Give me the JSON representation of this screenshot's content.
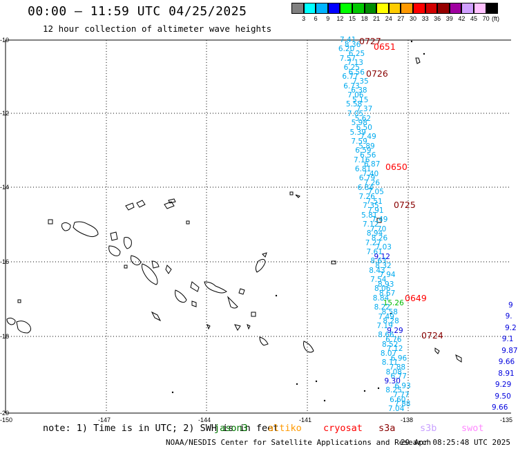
{
  "header": {
    "title": "00:00 — 11:59 UTC 04/25/2025",
    "subtitle": "12 hour collection of altimeter wave heights"
  },
  "legend": {
    "unit": "(ft)",
    "ticks": [
      "3",
      "6",
      "9",
      "12",
      "15",
      "18",
      "21",
      "24",
      "27",
      "30",
      "33",
      "36",
      "39",
      "42",
      "45",
      "70"
    ],
    "colors": [
      "#808080",
      "#00ffff",
      "#00b4ff",
      "#0000ff",
      "#00ff00",
      "#00c800",
      "#008c00",
      "#ffff00",
      "#ffcc00",
      "#ff9900",
      "#ff0000",
      "#d20000",
      "#960000",
      "#a000a0",
      "#d0a0ff",
      "#ffc0ff",
      "#000000"
    ]
  },
  "axes": {
    "lat_labels": [
      "-10",
      "-12",
      "-14",
      "-16",
      "-18",
      "-20"
    ],
    "lon_labels": [
      "-150",
      "-147",
      "-144",
      "-141",
      "-138",
      "-135"
    ]
  },
  "tracks": {
    "main_values": [
      "7.41",
      "8.36",
      "6.20",
      "6.25",
      "7.57",
      "7.13",
      "6.25",
      "6.56",
      "6.77",
      "7.35",
      "6.73",
      "6.38",
      "7.06",
      "5.15",
      "5.58",
      "7.37",
      "7.05",
      "5.62",
      "5.98",
      "6.50",
      "5.39",
      "7.49",
      "7.59",
      "5.89",
      "6.59",
      "6.56",
      "7.16",
      "6.87",
      "6.81",
      "7.40",
      "6.79",
      "7.26",
      "6.84",
      "7.05",
      "7.26",
      "7.51",
      "7.35",
      "7.91",
      "5.81",
      "7.49",
      "7.12",
      "7.70",
      "8.94",
      "8.26",
      "7.27",
      "7.03",
      "7.61",
      "9.12",
      "8.63",
      "8.32",
      "8.43",
      "7.94",
      "7.54",
      "8.93",
      "8.06",
      "8.67",
      "8.84",
      "15.26",
      "8.22",
      "8.58",
      "7.49",
      "8.28",
      "7.19",
      "9.29",
      "8.66",
      "6.76",
      "8.52",
      "7.12",
      "8.07",
      "6.96",
      "8.11",
      "7.88",
      "8.08",
      "6.77",
      "9.30",
      "6.93",
      "8.25",
      "7.77",
      "6.60",
      "7.88",
      "7.04"
    ],
    "east_values": [
      "9",
      "9.",
      "9.2",
      "9.1",
      "9.87",
      "9.66",
      "8.91",
      "9.29",
      "9.50",
      "9.66"
    ],
    "time_labels": [
      "0727",
      "0651",
      "0726",
      "0650",
      "0725",
      "0649",
      "0724"
    ]
  },
  "footer": {
    "note": "note: 1) Time is in UTC; 2) SWH is in feet",
    "satellites": [
      {
        "name": "jason3",
        "color": "#007700"
      },
      {
        "name": "altiko",
        "color": "#ff9900"
      },
      {
        "name": "cryosat",
        "color": "#ff0000"
      },
      {
        "name": "s3a",
        "color": "#880000"
      },
      {
        "name": "s3b",
        "color": "#c8a0ff"
      },
      {
        "name": "swot",
        "color": "#ff88ff"
      }
    ],
    "credit": "NOAA/NESDIS Center for Satellite Applications and Research",
    "timestamp": "29 Apr 08:25:48 UTC 2025"
  }
}
